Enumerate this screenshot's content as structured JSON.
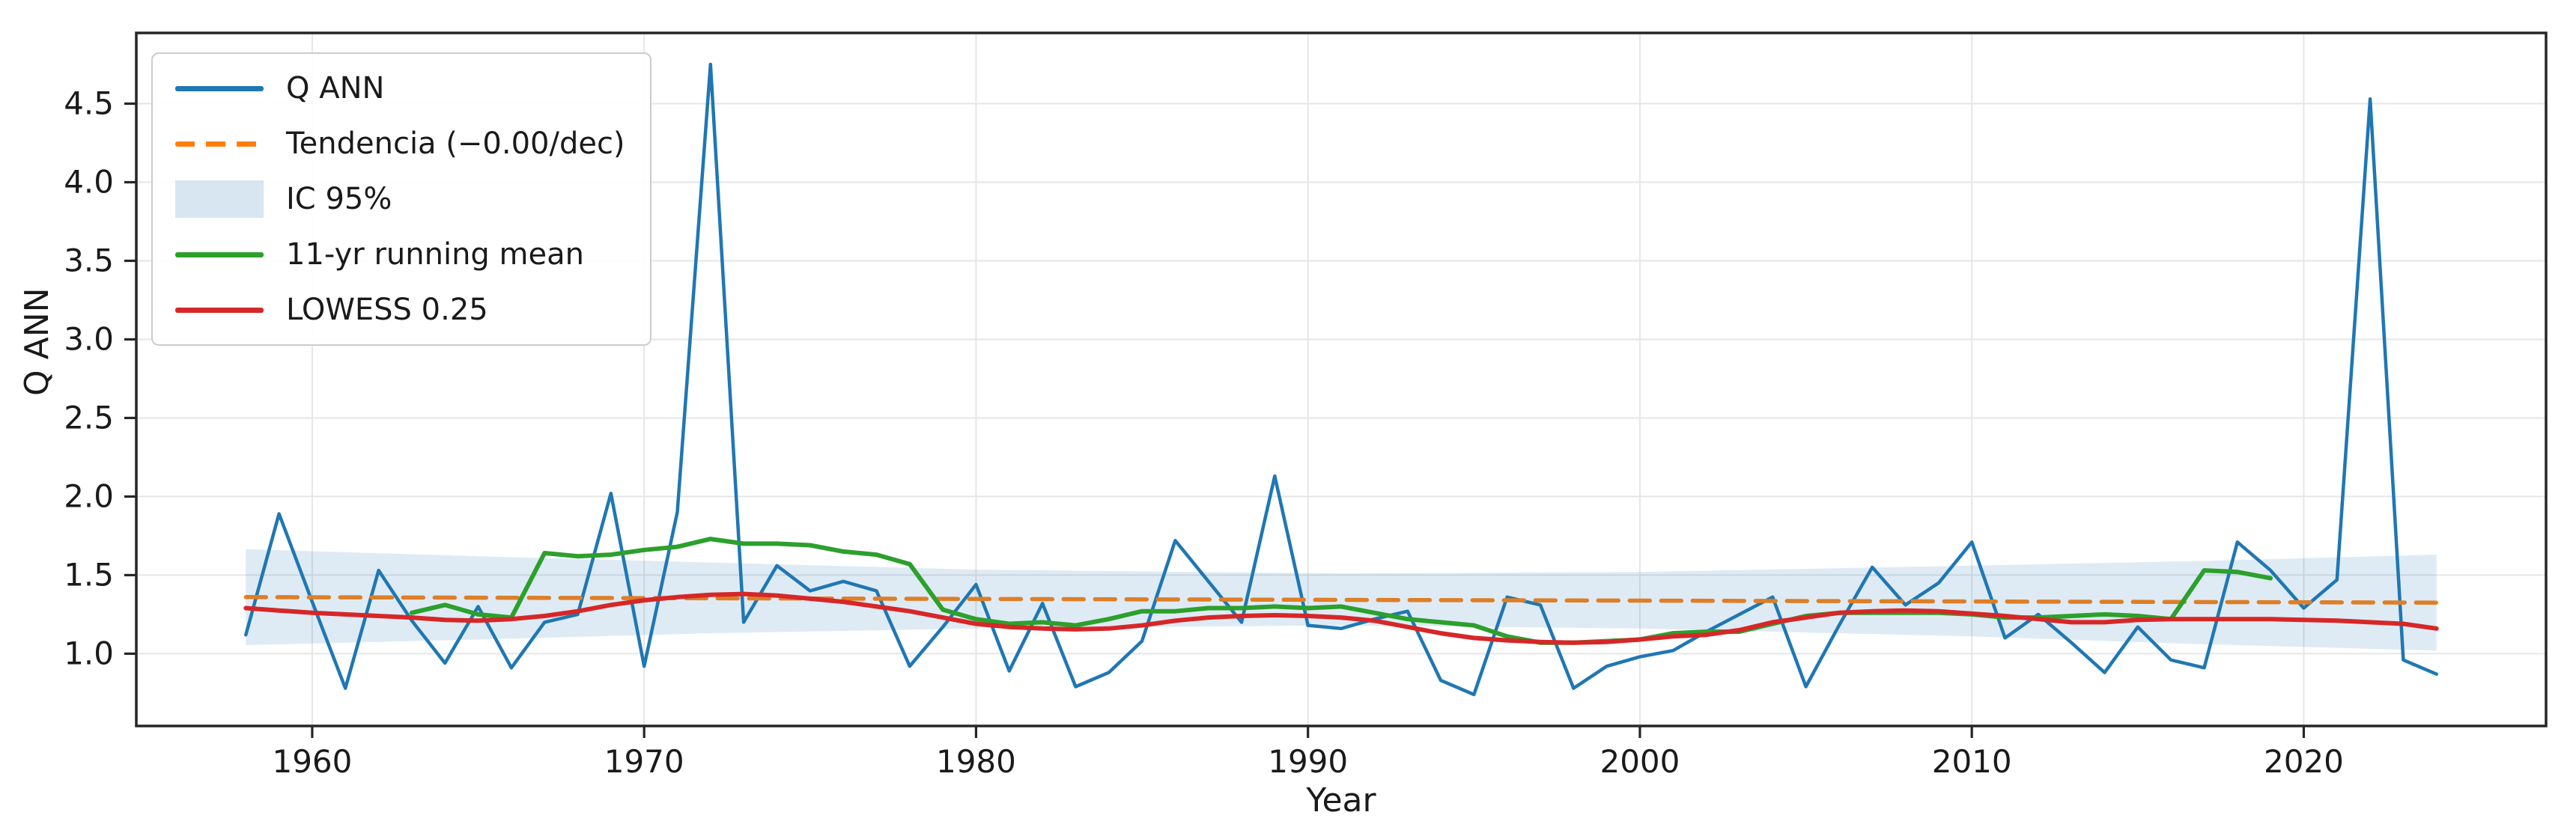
{
  "chart_data": {
    "type": "line",
    "title": "",
    "xlabel": "Year",
    "ylabel": "Q ANN",
    "grid": true,
    "legend_position": "upper left",
    "xlim": [
      1954.7,
      2027.3
    ],
    "ylim": [
      0.54,
      4.95
    ],
    "x_ticks": [
      1960,
      1970,
      1980,
      1990,
      2000,
      2010,
      2020
    ],
    "x_tick_labels": [
      "1960",
      "1970",
      "1980",
      "1990",
      "2000",
      "2010",
      "2020"
    ],
    "y_ticks": [
      1.0,
      1.5,
      2.0,
      2.5,
      3.0,
      3.5,
      4.0,
      4.5
    ],
    "y_tick_labels": [
      "1.0",
      "1.5",
      "2.0",
      "2.5",
      "3.0",
      "3.5",
      "4.0",
      "4.5"
    ],
    "colors": {
      "qann": "#1f77b4",
      "trend": "#ff7f0e",
      "band": "#1f77b4",
      "running_mean": "#2ca02c",
      "lowess": "#d62728",
      "grid": "#e6e6e6",
      "spine": "#262626",
      "text": "#1a1a1a"
    },
    "series": [
      {
        "name": "Q ANN",
        "kind": "line",
        "style": "solid",
        "color": "#1f77b4",
        "width": 4.5,
        "years": [
          1958,
          1959,
          1960,
          1961,
          1962,
          1963,
          1964,
          1965,
          1966,
          1967,
          1968,
          1969,
          1970,
          1971,
          1972,
          1973,
          1974,
          1975,
          1976,
          1977,
          1978,
          1979,
          1980,
          1981,
          1982,
          1983,
          1984,
          1985,
          1986,
          1987,
          1988,
          1989,
          1990,
          1991,
          1992,
          1993,
          1994,
          1995,
          1996,
          1997,
          1998,
          1999,
          2000,
          2001,
          2002,
          2003,
          2004,
          2005,
          2006,
          2007,
          2008,
          2009,
          2010,
          2011,
          2012,
          2013,
          2014,
          2015,
          2016,
          2017,
          2018,
          2019,
          2020,
          2021,
          2022,
          2023,
          2024
        ],
        "values": [
          1.12,
          1.89,
          1.33,
          0.78,
          1.53,
          1.21,
          0.94,
          1.3,
          0.91,
          1.2,
          1.25,
          2.02,
          0.92,
          1.9,
          4.75,
          1.2,
          1.56,
          1.4,
          1.46,
          1.4,
          0.92,
          1.17,
          1.44,
          0.89,
          1.32,
          0.79,
          0.88,
          1.08,
          1.72,
          1.46,
          1.2,
          2.13,
          1.18,
          1.16,
          1.22,
          1.27,
          0.83,
          0.74,
          1.36,
          1.31,
          0.78,
          0.92,
          0.98,
          1.02,
          1.14,
          1.25,
          1.36,
          0.79,
          1.18,
          1.55,
          1.31,
          1.45,
          1.71,
          1.1,
          1.25,
          1.07,
          0.88,
          1.17,
          0.96,
          0.91,
          1.71,
          1.53,
          1.29,
          1.47,
          4.53,
          0.96,
          0.87
        ]
      },
      {
        "name": "Tendencia (−0.00/dec)",
        "kind": "line",
        "style": "dashed",
        "color": "#ff7f0e",
        "width": 5.5,
        "years": [
          1958,
          2024
        ],
        "values": [
          1.36,
          1.325
        ]
      },
      {
        "name": "IC 95%",
        "kind": "band",
        "color": "#1f77b4",
        "opacity": 0.15,
        "years": [
          1958,
          1965,
          1972,
          1980,
          1991,
          2000,
          2010,
          2017,
          2024
        ],
        "top": [
          1.665,
          1.62,
          1.58,
          1.535,
          1.51,
          1.52,
          1.56,
          1.59,
          1.63
        ],
        "bottom": [
          1.055,
          1.09,
          1.13,
          1.16,
          1.18,
          1.16,
          1.11,
          1.06,
          1.02
        ]
      },
      {
        "name": "11-yr running mean",
        "kind": "line",
        "style": "solid",
        "color": "#2ca02c",
        "width": 6,
        "years": [
          1963,
          1964,
          1965,
          1966,
          1967,
          1968,
          1969,
          1970,
          1971,
          1972,
          1973,
          1974,
          1975,
          1976,
          1977,
          1978,
          1979,
          1980,
          1981,
          1982,
          1983,
          1984,
          1985,
          1986,
          1987,
          1988,
          1989,
          1990,
          1991,
          1992,
          1993,
          1994,
          1995,
          1996,
          1997,
          1998,
          1999,
          2000,
          2001,
          2002,
          2003,
          2004,
          2005,
          2006,
          2007,
          2008,
          2009,
          2010,
          2011,
          2012,
          2013,
          2014,
          2015,
          2016,
          2017,
          2018,
          2019
        ],
        "values": [
          1.26,
          1.31,
          1.25,
          1.23,
          1.64,
          1.62,
          1.63,
          1.66,
          1.68,
          1.73,
          1.7,
          1.7,
          1.69,
          1.65,
          1.63,
          1.57,
          1.28,
          1.22,
          1.19,
          1.2,
          1.18,
          1.22,
          1.27,
          1.27,
          1.29,
          1.29,
          1.3,
          1.29,
          1.3,
          1.26,
          1.22,
          1.2,
          1.18,
          1.11,
          1.07,
          1.07,
          1.08,
          1.09,
          1.13,
          1.14,
          1.14,
          1.19,
          1.24,
          1.26,
          1.26,
          1.26,
          1.26,
          1.25,
          1.23,
          1.23,
          1.24,
          1.25,
          1.24,
          1.22,
          1.53,
          1.52,
          1.48
        ]
      },
      {
        "name": "LOWESS 0.25",
        "kind": "line",
        "style": "solid",
        "color": "#d62728",
        "width": 6,
        "years": [
          1958,
          1959,
          1960,
          1961,
          1962,
          1963,
          1964,
          1965,
          1966,
          1967,
          1968,
          1969,
          1970,
          1971,
          1972,
          1973,
          1974,
          1975,
          1976,
          1977,
          1978,
          1979,
          1980,
          1981,
          1982,
          1983,
          1984,
          1985,
          1986,
          1987,
          1988,
          1989,
          1990,
          1991,
          1992,
          1993,
          1994,
          1995,
          1996,
          1997,
          1998,
          1999,
          2000,
          2001,
          2002,
          2003,
          2004,
          2005,
          2006,
          2007,
          2008,
          2009,
          2010,
          2011,
          2012,
          2013,
          2014,
          2015,
          2016,
          2017,
          2018,
          2019,
          2020,
          2021,
          2022,
          2023,
          2024
        ],
        "values": [
          1.29,
          1.275,
          1.26,
          1.25,
          1.24,
          1.23,
          1.215,
          1.21,
          1.22,
          1.24,
          1.27,
          1.31,
          1.34,
          1.36,
          1.375,
          1.38,
          1.37,
          1.35,
          1.33,
          1.3,
          1.27,
          1.23,
          1.19,
          1.17,
          1.16,
          1.155,
          1.16,
          1.18,
          1.21,
          1.23,
          1.24,
          1.245,
          1.24,
          1.23,
          1.21,
          1.17,
          1.13,
          1.1,
          1.085,
          1.075,
          1.07,
          1.075,
          1.09,
          1.11,
          1.12,
          1.15,
          1.2,
          1.23,
          1.26,
          1.27,
          1.275,
          1.27,
          1.255,
          1.24,
          1.22,
          1.2,
          1.2,
          1.215,
          1.22,
          1.22,
          1.22,
          1.22,
          1.215,
          1.21,
          1.2,
          1.19,
          1.16
        ]
      }
    ]
  },
  "legend": {
    "entries": [
      {
        "label": "Q ANN",
        "style": "solid",
        "color": "#1f77b4"
      },
      {
        "label": "Tendencia (−0.00/dec)",
        "style": "dashed",
        "color": "#ff7f0e"
      },
      {
        "label": "IC 95%",
        "style": "patch",
        "color": "rgba(31,119,180,0.18)"
      },
      {
        "label": "11-yr running mean",
        "style": "solid",
        "color": "#2ca02c"
      },
      {
        "label": "LOWESS 0.25",
        "style": "solid",
        "color": "#d62728"
      }
    ]
  }
}
